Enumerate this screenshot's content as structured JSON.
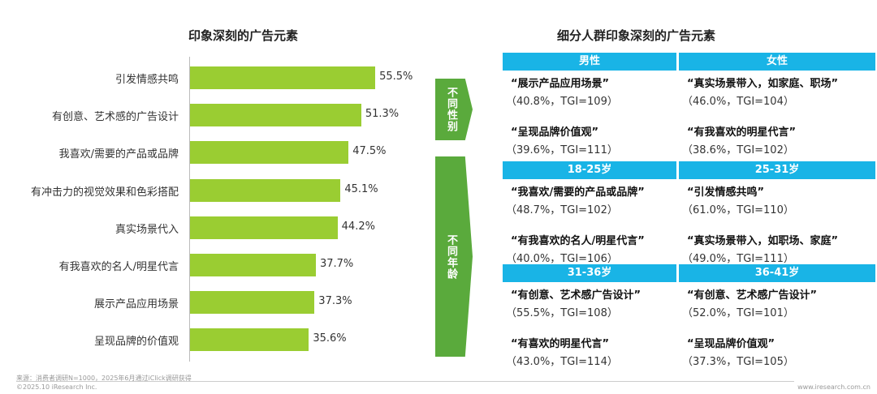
{
  "left_title": "印象深刻的广告元素",
  "right_title": "细分人群印象深刻的广告元素",
  "chart_data": {
    "type": "bar",
    "orientation": "horizontal",
    "title": "印象深刻的广告元素",
    "categories": [
      "引发情感共鸣",
      "有创意、艺术感的广告设计",
      "我喜欢/需要的产品或品牌",
      "有冲击力的视觉效果和色彩搭配",
      "真实场景代入",
      "有我喜欢的名人/明星代言",
      "展示产品应用场景",
      "呈现品牌的价值观"
    ],
    "values": [
      55.5,
      51.3,
      47.5,
      45.1,
      44.2,
      37.7,
      37.3,
      35.6
    ],
    "labels": [
      "55.5%",
      "51.3%",
      "47.5%",
      "45.1%",
      "44.2%",
      "37.7%",
      "37.3%",
      "35.6%"
    ],
    "unit": "%",
    "color": "#9acd32"
  },
  "arrows": [
    "不同性别",
    "不同年龄"
  ],
  "groups": [
    {
      "headers": [
        "男性",
        "女性"
      ],
      "cols": [
        [
          {
            "name": "“展示产品应用场景”",
            "stat": "（40.8%，TGI=109）"
          },
          {
            "name": "“呈现品牌价值观”",
            "stat": "（39.6%，TGI=111）"
          }
        ],
        [
          {
            "name": "“真实场景带入，如家庭、职场”",
            "stat": "（46.0%，TGI=104）"
          },
          {
            "name": "“有我喜欢的明星代言”",
            "stat": "（38.6%，TGI=102）"
          }
        ]
      ]
    },
    {
      "headers": [
        "18-25岁",
        "25-31岁"
      ],
      "cols": [
        [
          {
            "name": "“我喜欢/需要的产品或品牌”",
            "stat": "（48.7%，TGI=102）"
          },
          {
            "name": "“有我喜欢的名人/明星代言”",
            "stat": "（40.0%，TGI=106）"
          }
        ],
        [
          {
            "name": "“引发情感共鸣”",
            "stat": "（61.0%，TGI=110）"
          },
          {
            "name": "“真实场景带入，如职场、家庭”",
            "stat": "（49.0%，TGI=111）"
          }
        ]
      ]
    },
    {
      "headers": [
        "31-36岁",
        "36-41岁"
      ],
      "cols": [
        [
          {
            "name": "“有创意、艺术感广告设计”",
            "stat": "（55.5%，TGI=108）"
          },
          {
            "name": "“有喜欢的明星代言”",
            "stat": "（43.0%，TGI=114）"
          }
        ],
        [
          {
            "name": "“有创意、艺术感广告设计”",
            "stat": "（52.0%，TGI=101）"
          },
          {
            "name": "“呈现品牌价值观”",
            "stat": "（37.3%，TGI=105）"
          }
        ]
      ]
    }
  ],
  "footer": {
    "source": "来源：消费者调研N=1000，2025年6月通过iClick调研获得",
    "copyright": "©2025.10 iResearch Inc.",
    "site": "www.iresearch.com.cn"
  },
  "header_color": "#19b4e6",
  "arrow_color": "#5aaa3c"
}
